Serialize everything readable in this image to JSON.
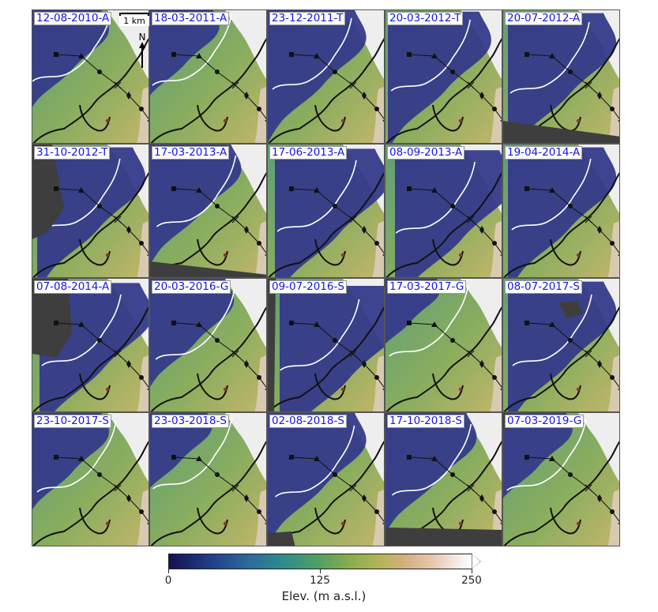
{
  "panels": [
    {
      "label": "12-08-2010-A"
    },
    {
      "label": "18-03-2011-A"
    },
    {
      "label": "23-12-2011-T"
    },
    {
      "label": "20-03-2012-T"
    },
    {
      "label": "20-07-2012-A"
    },
    {
      "label": "31-10-2012-T"
    },
    {
      "label": "17-03-2013-A"
    },
    {
      "label": "17-06-2013-A"
    },
    {
      "label": "08-09-2013-A"
    },
    {
      "label": "19-04-2014-A"
    },
    {
      "label": "07-08-2014-A"
    },
    {
      "label": "20-03-2016-G"
    },
    {
      "label": "09-07-2016-S"
    },
    {
      "label": "17-03-2017-G"
    },
    {
      "label": "08-07-2017-S"
    },
    {
      "label": "23-10-2017-S"
    },
    {
      "label": "23-03-2018-S"
    },
    {
      "label": "02-08-2018-S"
    },
    {
      "label": "17-10-2018-S"
    },
    {
      "label": "07-03-2019-G"
    }
  ],
  "scale_bar": {
    "label": "1 km"
  },
  "north_arrow": {
    "label": "N"
  },
  "colorbar": {
    "title": "Elev. (m a.s.l.)",
    "tick_labels": [
      "0",
      "125",
      "250"
    ],
    "range": [
      0,
      250
    ],
    "extend": "max",
    "colors": [
      "#151151",
      "#213f8a",
      "#2e8d8b",
      "#8bae4a",
      "#d3b07e",
      "#f6eeea"
    ]
  },
  "map_colors": {
    "low": "#353a8a",
    "mid": "#5f9e78",
    "high": "#c4b66a",
    "snow": "#eeeeee",
    "nodata": "#3e3e3e",
    "contour_white": "#ffffff",
    "contour_black": "#111111"
  }
}
